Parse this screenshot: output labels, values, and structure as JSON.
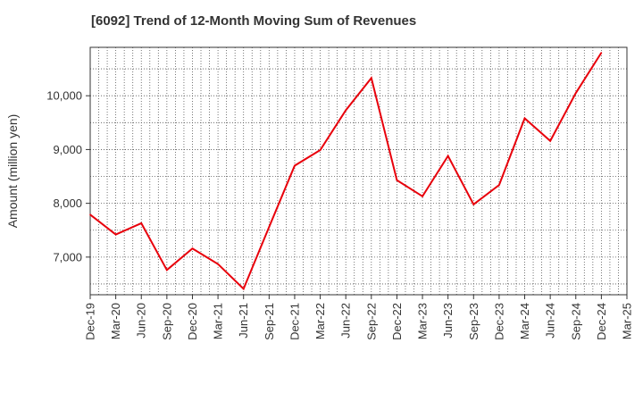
{
  "chart_data": {
    "type": "line",
    "title": "[6092]  Trend of 12-Month Moving Sum of Revenues",
    "xlabel": "",
    "ylabel": "Amount (million yen)",
    "ylim": [
      6300,
      10900
    ],
    "yticks": [
      7000,
      8000,
      9000,
      10000
    ],
    "ytick_labels": [
      "7,000",
      "8,000",
      "9,000",
      "10,000"
    ],
    "categories": [
      "Dec-19",
      "Mar-20",
      "Jun-20",
      "Sep-20",
      "Dec-20",
      "Mar-21",
      "Jun-21",
      "Sep-21",
      "Dec-21",
      "Mar-22",
      "Jun-22",
      "Sep-22",
      "Dec-22",
      "Mar-23",
      "Jun-23",
      "Sep-23",
      "Dec-23",
      "Mar-24",
      "Jun-24",
      "Sep-24",
      "Dec-24",
      "Mar-25"
    ],
    "series": [
      {
        "values": [
          7790,
          7420,
          7630,
          6760,
          7160,
          6870,
          6410,
          7560,
          8700,
          8990,
          9730,
          10330,
          8430,
          8130,
          8880,
          7980,
          8340,
          9580,
          9160,
          10050,
          10800,
          null
        ],
        "color": "#e8000b"
      }
    ],
    "grid": true,
    "legend": "none"
  }
}
